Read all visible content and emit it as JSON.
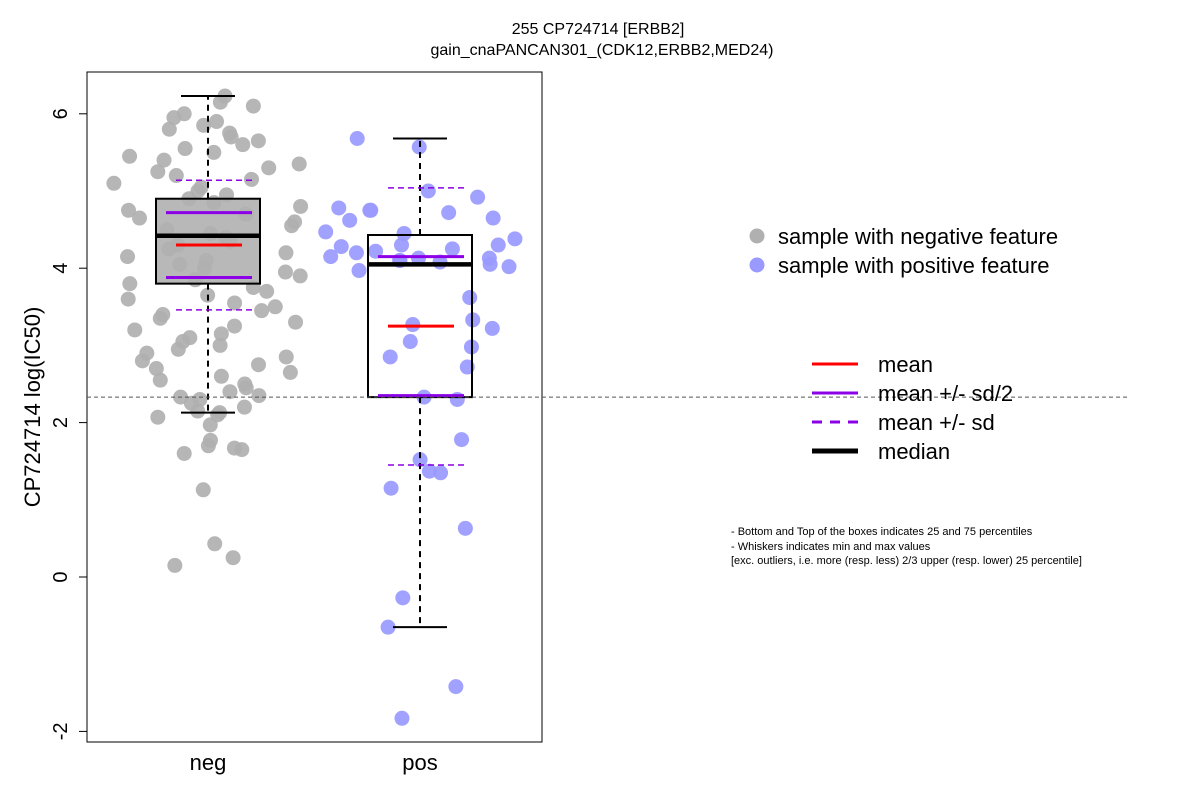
{
  "chart_data": {
    "type": "box",
    "title": "255 CP724714 [ERBB2]",
    "subtitle": "gain_cnaPANCAN301_(CDK12,ERBB2,MED24)",
    "xlabel": "",
    "ylabel": "CP724714 log(IC50)",
    "ylim": [
      -2.2,
      6.4
    ],
    "yticks": [
      -2,
      0,
      2,
      4,
      6
    ],
    "categories": [
      "neg",
      "pos"
    ],
    "reference_line_y": 2.33,
    "groups": [
      {
        "category": "neg",
        "color": "#b0b0b0",
        "legend": "sample with negative feature",
        "q1": 3.8,
        "median": 4.42,
        "q3": 4.9,
        "whisker_low": 2.13,
        "whisker_high": 6.23,
        "mean": 4.3,
        "mean_minus_half_sd": 3.88,
        "mean_plus_half_sd": 4.72,
        "mean_minus_sd": 3.46,
        "mean_plus_sd": 5.14,
        "points": [
          0.15,
          0.25,
          0.43,
          1.13,
          1.6,
          1.65,
          1.67,
          1.7,
          1.77,
          1.97,
          2.07,
          2.1,
          2.13,
          2.15,
          2.2,
          2.25,
          2.3,
          2.33,
          2.35,
          2.4,
          2.45,
          2.5,
          2.55,
          2.6,
          2.65,
          2.7,
          2.75,
          2.8,
          2.85,
          2.9,
          2.95,
          3.0,
          3.05,
          3.1,
          3.15,
          3.2,
          3.25,
          3.3,
          3.35,
          3.4,
          3.45,
          3.5,
          3.55,
          3.6,
          3.65,
          3.7,
          3.75,
          3.8,
          3.85,
          3.9,
          3.95,
          4.0,
          4.05,
          4.1,
          4.15,
          4.2,
          4.25,
          4.3,
          4.35,
          4.4,
          4.45,
          4.5,
          4.55,
          4.6,
          4.65,
          4.7,
          4.75,
          4.8,
          4.85,
          4.9,
          4.95,
          5.0,
          5.05,
          5.1,
          5.15,
          5.2,
          5.25,
          5.3,
          5.35,
          5.4,
          5.45,
          5.5,
          5.55,
          5.6,
          5.65,
          5.7,
          5.75,
          5.8,
          5.85,
          5.9,
          5.95,
          6.0,
          6.1,
          6.15,
          6.23
        ]
      },
      {
        "category": "pos",
        "color": "#9999ff",
        "legend": "sample with positive feature",
        "q1": 2.33,
        "median": 4.05,
        "q3": 4.43,
        "whisker_low": -0.65,
        "whisker_high": 5.68,
        "mean": 3.25,
        "mean_minus_half_sd": 2.35,
        "mean_plus_half_sd": 4.15,
        "mean_minus_sd": 1.45,
        "mean_plus_sd": 5.04,
        "points": [
          -1.83,
          -1.42,
          -0.65,
          -0.27,
          0.63,
          1.15,
          1.35,
          1.37,
          1.52,
          1.78,
          2.3,
          2.33,
          2.72,
          2.85,
          2.98,
          3.05,
          3.22,
          3.27,
          3.33,
          3.62,
          3.97,
          4.02,
          4.05,
          4.08,
          4.1,
          4.1,
          4.13,
          4.13,
          4.15,
          4.2,
          4.22,
          4.25,
          4.28,
          4.3,
          4.3,
          4.38,
          4.45,
          4.47,
          4.62,
          4.65,
          4.72,
          4.75,
          4.75,
          4.78,
          4.92,
          5.0,
          5.57,
          5.68
        ]
      }
    ],
    "legend_placement": "right",
    "grid": false
  },
  "stat_legend": [
    {
      "label": "mean",
      "color": "#ff0000",
      "style": "solid"
    },
    {
      "label": "mean +/- sd/2",
      "color": "#8b00e6",
      "style": "solid"
    },
    {
      "label": "mean +/- sd",
      "color": "#8b00e6",
      "style": "dashed"
    },
    {
      "label": "median",
      "color": "#000000",
      "style": "thick"
    }
  ],
  "notes": [
    "- Bottom and Top of the boxes indicates 25 and 75 percentiles",
    "- Whiskers indicates min and max values",
    "[exc. outliers, i.e. more (resp. less) 2/3 upper (resp. lower) 25 percentile]"
  ]
}
